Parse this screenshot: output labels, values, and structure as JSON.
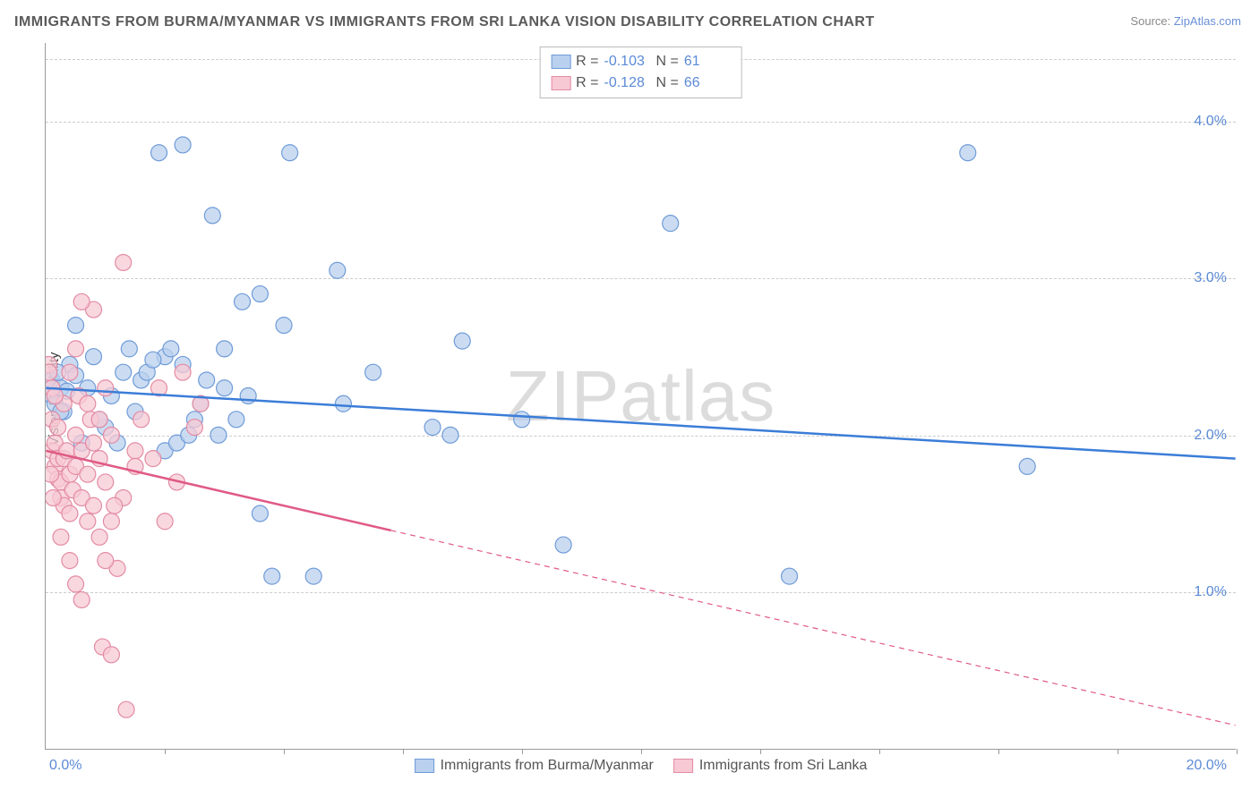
{
  "title": "IMMIGRANTS FROM BURMA/MYANMAR VS IMMIGRANTS FROM SRI LANKA VISION DISABILITY CORRELATION CHART",
  "source_prefix": "Source: ",
  "source_link": "ZipAtlas.com",
  "ylabel": "Vision Disability",
  "watermark": "ZIPatlas",
  "chart": {
    "type": "scatter",
    "xlim": [
      0,
      20
    ],
    "ylim": [
      0,
      4.5
    ],
    "gridlines_y": [
      1.0,
      2.0,
      3.0,
      4.0
    ],
    "ytick_labels": [
      "1.0%",
      "2.0%",
      "3.0%",
      "4.0%"
    ],
    "xtick_positions": [
      2,
      4,
      6,
      8,
      10,
      12,
      14,
      16,
      18,
      20
    ],
    "xtick_label_left": "0.0%",
    "xtick_label_right": "20.0%",
    "background_color": "#ffffff",
    "grid_color": "#cccccc",
    "axis_color": "#999999",
    "tick_label_color": "#5b8ad6"
  },
  "series": [
    {
      "id": "burma",
      "label": "Immigrants from Burma/Myanmar",
      "R": "-0.103",
      "N": "61",
      "point_fill": "#b9d0ee",
      "point_stroke": "#6f9bd8",
      "line_color": "#3b7dd8",
      "marker_radius": 9,
      "line_width": 2.5,
      "trend": {
        "x1": 0,
        "y1": 2.3,
        "x2": 20,
        "y2": 1.85,
        "solid_until_x": 20
      },
      "points": [
        [
          0.1,
          2.3
        ],
        [
          0.1,
          2.35
        ],
        [
          0.1,
          2.25
        ],
        [
          0.15,
          2.2
        ],
        [
          0.25,
          2.3
        ],
        [
          0.4,
          2.45
        ],
        [
          0.5,
          2.7
        ],
        [
          0.8,
          2.5
        ],
        [
          1.3,
          2.4
        ],
        [
          1.4,
          2.55
        ],
        [
          1.6,
          2.35
        ],
        [
          1.7,
          2.4
        ],
        [
          2.0,
          2.5
        ],
        [
          2.1,
          2.55
        ],
        [
          2.3,
          2.45
        ],
        [
          2.6,
          2.2
        ],
        [
          2.7,
          2.35
        ],
        [
          3.0,
          2.3
        ],
        [
          3.2,
          2.1
        ],
        [
          3.4,
          2.25
        ],
        [
          1.0,
          2.05
        ],
        [
          1.2,
          1.95
        ],
        [
          2.0,
          1.9
        ],
        [
          2.2,
          1.95
        ],
        [
          2.9,
          2.0
        ],
        [
          3.6,
          1.5
        ],
        [
          3.8,
          1.1
        ],
        [
          4.5,
          1.1
        ],
        [
          1.9,
          3.8
        ],
        [
          2.3,
          3.85
        ],
        [
          2.8,
          3.4
        ],
        [
          4.1,
          3.8
        ],
        [
          3.3,
          2.85
        ],
        [
          3.6,
          2.9
        ],
        [
          4.0,
          2.7
        ],
        [
          4.9,
          3.05
        ],
        [
          5.0,
          2.2
        ],
        [
          5.5,
          2.4
        ],
        [
          7.0,
          2.6
        ],
        [
          6.5,
          2.05
        ],
        [
          6.8,
          2.0
        ],
        [
          8.0,
          2.1
        ],
        [
          8.7,
          1.3
        ],
        [
          10.5,
          3.35
        ],
        [
          12.5,
          1.1
        ],
        [
          15.5,
          3.8
        ],
        [
          16.5,
          1.8
        ],
        [
          0.6,
          1.95
        ],
        [
          0.9,
          2.1
        ],
        [
          1.1,
          2.25
        ],
        [
          1.5,
          2.15
        ],
        [
          2.5,
          2.1
        ],
        [
          0.3,
          2.15
        ],
        [
          0.35,
          2.28
        ],
        [
          0.5,
          2.38
        ],
        [
          0.7,
          2.3
        ],
        [
          1.8,
          2.48
        ],
        [
          0.2,
          2.4
        ],
        [
          0.25,
          2.15
        ],
        [
          3.0,
          2.55
        ],
        [
          2.4,
          2.0
        ]
      ]
    },
    {
      "id": "srilanka",
      "label": "Immigrants from Sri Lanka",
      "R": "-0.128",
      "N": "66",
      "point_fill": "#f7c9d4",
      "point_stroke": "#e38ba3",
      "line_color": "#e05a85",
      "marker_radius": 9,
      "line_width": 2.5,
      "trend": {
        "x1": 0,
        "y1": 1.9,
        "x2": 20,
        "y2": 0.15,
        "solid_until_x": 5.8
      },
      "points": [
        [
          0.05,
          2.45
        ],
        [
          0.05,
          2.4
        ],
        [
          0.1,
          2.3
        ],
        [
          0.1,
          2.1
        ],
        [
          0.1,
          1.9
        ],
        [
          0.15,
          1.95
        ],
        [
          0.15,
          1.8
        ],
        [
          0.2,
          1.85
        ],
        [
          0.2,
          1.72
        ],
        [
          0.25,
          1.7
        ],
        [
          0.25,
          1.6
        ],
        [
          0.3,
          1.85
        ],
        [
          0.3,
          1.55
        ],
        [
          0.35,
          1.9
        ],
        [
          0.4,
          1.75
        ],
        [
          0.4,
          1.5
        ],
        [
          0.45,
          1.65
        ],
        [
          0.5,
          1.8
        ],
        [
          0.5,
          2.0
        ],
        [
          0.6,
          1.9
        ],
        [
          0.6,
          1.6
        ],
        [
          0.7,
          1.75
        ],
        [
          0.7,
          1.45
        ],
        [
          0.75,
          2.1
        ],
        [
          0.8,
          1.95
        ],
        [
          0.8,
          1.55
        ],
        [
          0.9,
          1.85
        ],
        [
          0.9,
          1.35
        ],
        [
          1.0,
          2.3
        ],
        [
          1.0,
          1.7
        ],
        [
          1.1,
          2.0
        ],
        [
          1.1,
          1.45
        ],
        [
          1.2,
          1.15
        ],
        [
          0.8,
          2.8
        ],
        [
          0.6,
          2.85
        ],
        [
          0.5,
          2.55
        ],
        [
          1.3,
          3.1
        ],
        [
          1.0,
          1.2
        ],
        [
          1.3,
          1.6
        ],
        [
          1.5,
          1.9
        ],
        [
          1.5,
          1.8
        ],
        [
          1.6,
          2.1
        ],
        [
          1.8,
          1.85
        ],
        [
          1.9,
          2.3
        ],
        [
          2.0,
          1.45
        ],
        [
          2.2,
          1.7
        ],
        [
          2.3,
          2.4
        ],
        [
          2.5,
          2.05
        ],
        [
          2.6,
          2.2
        ],
        [
          0.6,
          0.95
        ],
        [
          0.95,
          0.65
        ],
        [
          1.1,
          0.6
        ],
        [
          1.35,
          0.25
        ],
        [
          0.4,
          1.2
        ],
        [
          0.5,
          1.05
        ],
        [
          0.25,
          1.35
        ],
        [
          0.3,
          2.2
        ],
        [
          0.4,
          2.4
        ],
        [
          0.55,
          2.25
        ],
        [
          0.7,
          2.2
        ],
        [
          0.15,
          2.25
        ],
        [
          0.2,
          2.05
        ],
        [
          0.08,
          1.75
        ],
        [
          0.12,
          1.6
        ],
        [
          0.9,
          2.1
        ],
        [
          1.15,
          1.55
        ]
      ]
    }
  ],
  "legend_box": {
    "r_label": "R =",
    "n_label": "N ="
  },
  "bottom_legend": {
    "items": [
      "Immigrants from Burma/Myanmar",
      "Immigrants from Sri Lanka"
    ]
  }
}
